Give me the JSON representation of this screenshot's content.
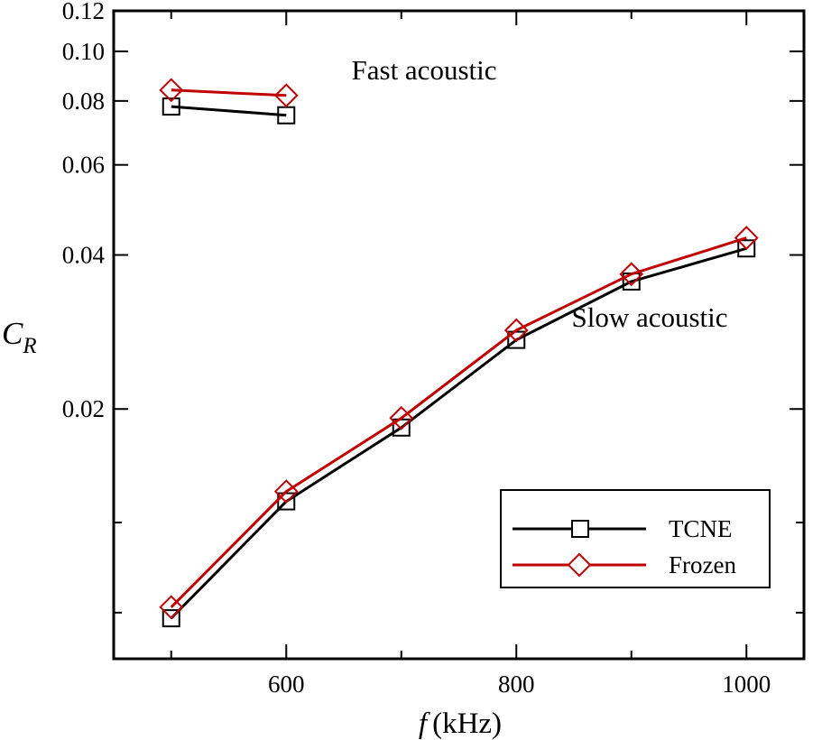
{
  "chart_data": {
    "type": "line",
    "xlabel_symbol": "f",
    "xlabel_unit": "(kHz)",
    "ylabel_symbol": "C",
    "ylabel_subscript": "R",
    "yscale": "log",
    "xlim": [
      450,
      1050
    ],
    "ylim": [
      0.0065,
      0.12
    ],
    "x_ticks": [
      {
        "value": 600,
        "label": "600"
      },
      {
        "value": 800,
        "label": "800"
      },
      {
        "value": 1000,
        "label": "1000"
      }
    ],
    "x_minor_ticks": [
      500,
      700,
      900
    ],
    "y_ticks": [
      {
        "value": 0.02,
        "label": "0.02"
      },
      {
        "value": 0.04,
        "label": "0.04"
      },
      {
        "value": 0.06,
        "label": "0.06"
      },
      {
        "value": 0.08,
        "label": "0.08"
      },
      {
        "value": 0.1,
        "label": "0.10"
      },
      {
        "value": 0.12,
        "label": "0.12"
      }
    ],
    "y_minor_ticks": [
      0.008,
      0.012
    ],
    "grid": false,
    "legend_position": "bottom-right",
    "series": [
      {
        "name": "TCNE",
        "color": "#000000",
        "marker": "square",
        "segments": [
          {
            "x": [
              500,
              600
            ],
            "y": [
              0.078,
              0.075
            ]
          },
          {
            "x": [
              500,
              600,
              700,
              800,
              900,
              1000
            ],
            "y": [
              0.0078,
              0.0132,
              0.0184,
              0.0273,
              0.0355,
              0.0412
            ]
          }
        ]
      },
      {
        "name": "Frozen",
        "color": "#c00000",
        "marker": "diamond",
        "segments": [
          {
            "x": [
              500,
              600
            ],
            "y": [
              0.084,
              0.082
            ]
          },
          {
            "x": [
              500,
              600,
              700,
              800,
              900,
              1000
            ],
            "y": [
              0.0082,
              0.0138,
              0.0192,
              0.0285,
              0.0367,
              0.0432
            ]
          }
        ]
      }
    ],
    "annotations": [
      {
        "text": "Fast acoustic",
        "x": 760,
        "y": 0.088
      },
      {
        "text": "Slow acoustic",
        "x": 960,
        "y": 0.0203
      }
    ]
  }
}
